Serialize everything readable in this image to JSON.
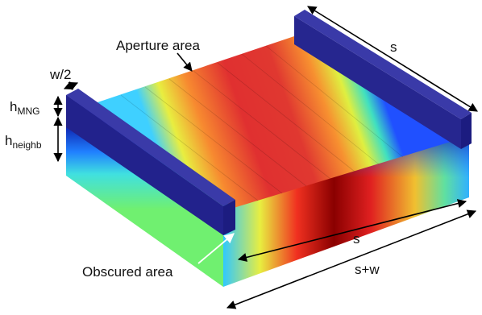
{
  "labels": {
    "aperture_area": "Aperture area",
    "obscured_area": "Obscured area",
    "s_top": "s",
    "s_front": "s",
    "s_plus_w": "s+w",
    "w_half": "w/2",
    "h_mng": {
      "base": "h",
      "sub": "MNG"
    },
    "h_neighb": {
      "base": "h",
      "sub": "neighb"
    }
  }
}
